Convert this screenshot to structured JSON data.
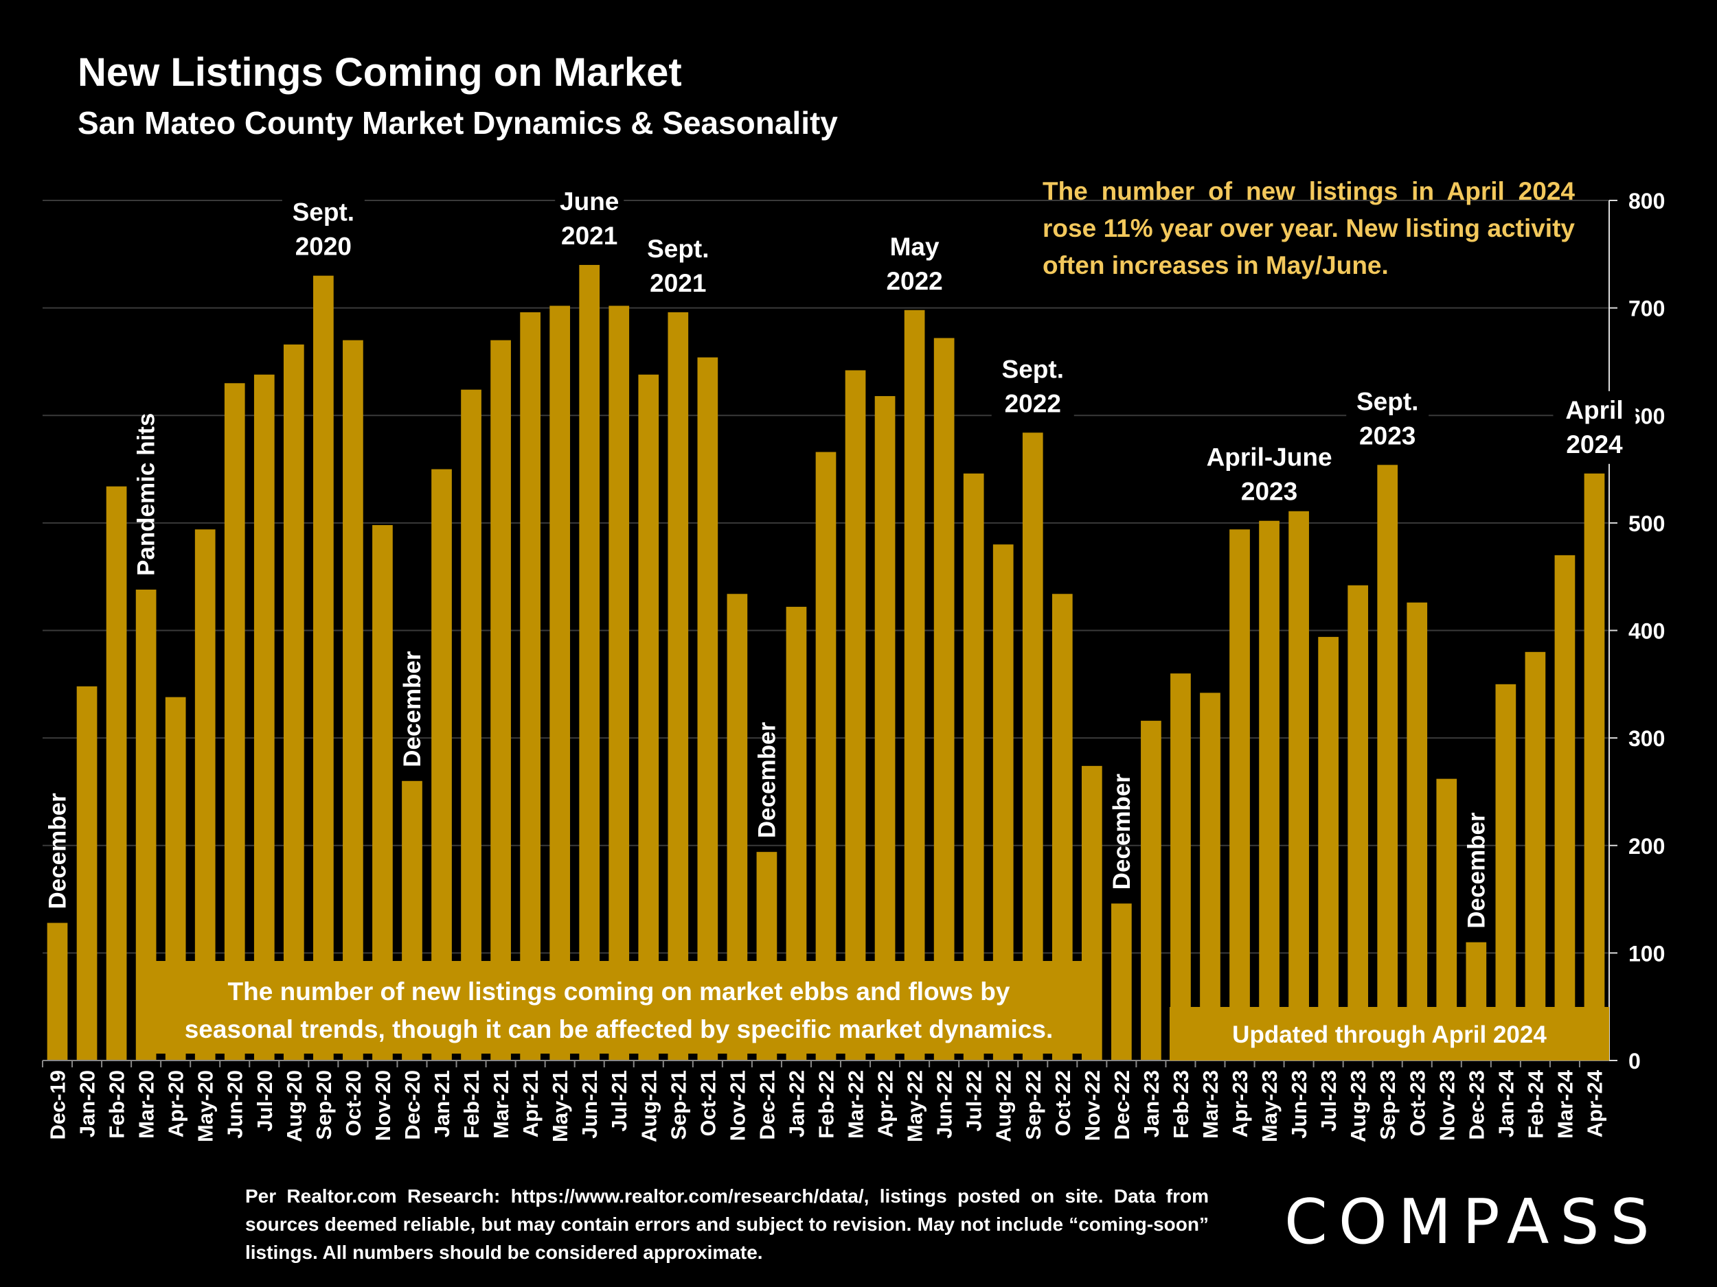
{
  "header": {
    "title": "New Listings Coming on Market",
    "subtitle": "San Mateo County Market Dynamics & Seasonality"
  },
  "colors": {
    "bar": "#bf9000",
    "background": "#000000",
    "callout_text": "#f3c85c",
    "grid": "#3a3a3a"
  },
  "chart_data": {
    "type": "bar",
    "categories": [
      "Dec-19",
      "Jan-20",
      "Feb-20",
      "Mar-20",
      "Apr-20",
      "May-20",
      "Jun-20",
      "Jul-20",
      "Aug-20",
      "Sep-20",
      "Oct-20",
      "Nov-20",
      "Dec-20",
      "Jan-21",
      "Feb-21",
      "Mar-21",
      "Apr-21",
      "May-21",
      "Jun-21",
      "Jul-21",
      "Aug-21",
      "Sep-21",
      "Oct-21",
      "Nov-21",
      "Dec-21",
      "Jan-22",
      "Feb-22",
      "Mar-22",
      "Apr-22",
      "May-22",
      "Jun-22",
      "Jul-22",
      "Aug-22",
      "Sep-22",
      "Oct-22",
      "Nov-22",
      "Dec-22",
      "Jan-23",
      "Feb-23",
      "Mar-23",
      "Apr-23",
      "May-23",
      "Jun-23",
      "Jul-23",
      "Aug-23",
      "Sep-23",
      "Oct-23",
      "Nov-23",
      "Dec-23",
      "Jan-24",
      "Feb-24",
      "Mar-24",
      "Apr-24"
    ],
    "values": [
      128,
      348,
      534,
      438,
      338,
      494,
      630,
      638,
      666,
      730,
      670,
      498,
      260,
      550,
      624,
      670,
      696,
      702,
      740,
      702,
      638,
      696,
      654,
      434,
      194,
      422,
      566,
      642,
      618,
      698,
      672,
      546,
      480,
      584,
      434,
      274,
      146,
      316,
      360,
      342,
      494,
      502,
      512,
      394,
      442,
      554,
      426,
      262,
      110,
      350,
      380,
      470,
      546
    ],
    "ylim": [
      0,
      800
    ],
    "yticks": [
      0,
      100,
      200,
      300,
      400,
      500,
      600,
      700,
      800
    ],
    "y_axis_position": "right",
    "grid": true,
    "annotations": [
      {
        "category": "Dec-19",
        "text": "December",
        "style": "vertical"
      },
      {
        "category": "Mar-20",
        "text": "Pandemic hits",
        "style": "vertical"
      },
      {
        "category": "Sep-20",
        "text": "Sept.\n2020",
        "style": "horizontal"
      },
      {
        "category": "Dec-20",
        "text": "December",
        "style": "vertical"
      },
      {
        "category": "Jun-21",
        "text": "June\n2021",
        "style": "horizontal"
      },
      {
        "category": "Sep-21",
        "text": "Sept.\n2021",
        "style": "horizontal"
      },
      {
        "category": "Dec-21",
        "text": "December",
        "style": "vertical"
      },
      {
        "category": "May-22",
        "text": "May\n2022",
        "style": "horizontal"
      },
      {
        "category": "Sep-22",
        "text": "Sept.\n2022",
        "style": "horizontal"
      },
      {
        "category": "Dec-22",
        "text": "December",
        "style": "vertical"
      },
      {
        "category": "May-23",
        "text": "April-June\n2023",
        "style": "horizontal"
      },
      {
        "category": "Sep-23",
        "text": "Sept.\n2023",
        "style": "horizontal"
      },
      {
        "category": "Dec-23",
        "text": "December",
        "style": "vertical"
      },
      {
        "category": "Apr-24",
        "text": "April\n2024",
        "style": "horizontal"
      }
    ],
    "box_notes": {
      "main": "The number of new listings coming on market ebbs and flows by seasonal trends, though it can be affected by specific market dynamics.",
      "updated": "Updated through April 2024"
    }
  },
  "callout": {
    "text": "The number of new listings in April 2024 rose 11% year over year. New listing activity often increases in May/June."
  },
  "footnote": {
    "text": "Per Realtor.com Research: https://www.realtor.com/research/data/, listings posted on site. Data from sources deemed reliable, but may contain errors and subject to revision. May not include “coming-soon” listings. All numbers should be considered approximate."
  },
  "logo": {
    "text": "COMPASS"
  }
}
